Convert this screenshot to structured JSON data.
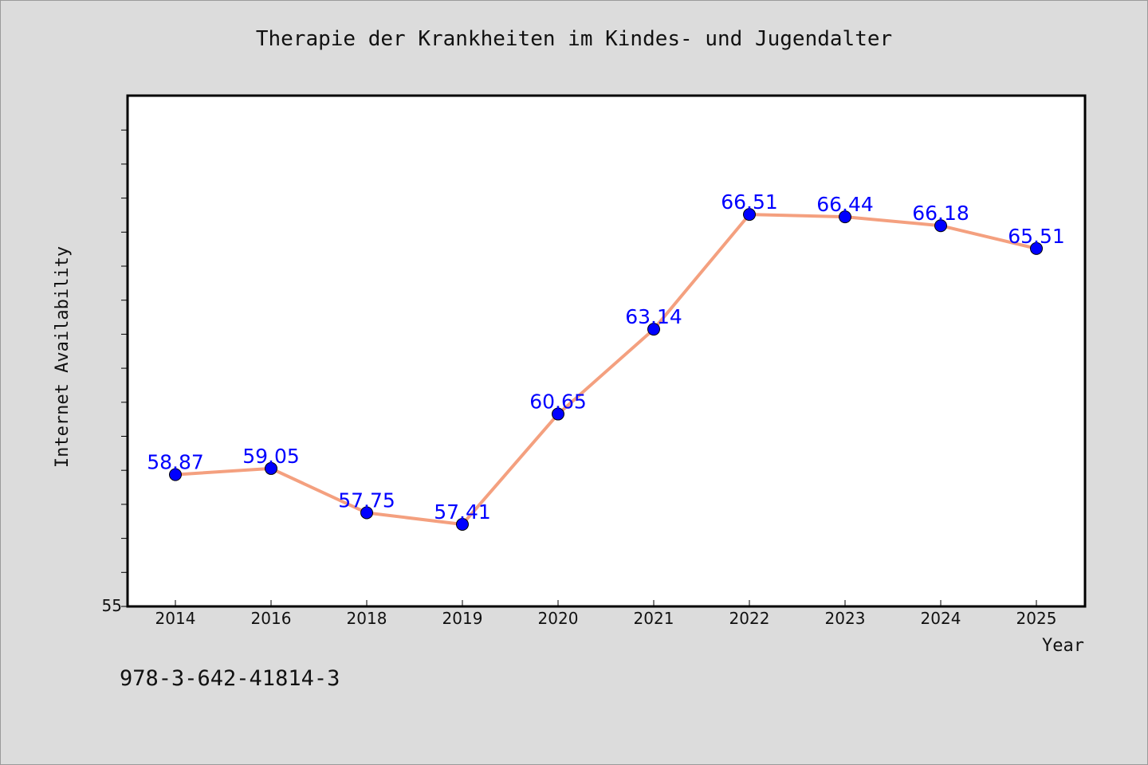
{
  "page": {
    "isbn": "978-3-642-41814-3"
  },
  "chart_data": {
    "type": "line",
    "title": "Therapie der Krankheiten im Kindes- und Jugendalter",
    "xlabel": "Year",
    "ylabel": "Internet Availability",
    "categories": [
      "2014",
      "2016",
      "2018",
      "2019",
      "2020",
      "2021",
      "2022",
      "2023",
      "2024",
      "2025"
    ],
    "series": [
      {
        "values": [
          58.87,
          59.05,
          57.75,
          57.41,
          60.65,
          63.14,
          66.51,
          66.44,
          66.18,
          65.51
        ]
      }
    ],
    "data_labels": [
      "58.87",
      "59.05",
      "57.75",
      "57.41",
      "60.65",
      "63.14",
      "66.51",
      "66.44",
      "66.18",
      "65.51"
    ],
    "y_tick_labels": [
      "55"
    ],
    "ylim": [
      55,
      70
    ],
    "grid": false,
    "legend": "none",
    "colors": {
      "line": "#f4a07f",
      "marker": "#0000ff",
      "label": "#0000ff",
      "plot_bg": "#ffffff",
      "page_bg": "#dcdcdc"
    }
  }
}
